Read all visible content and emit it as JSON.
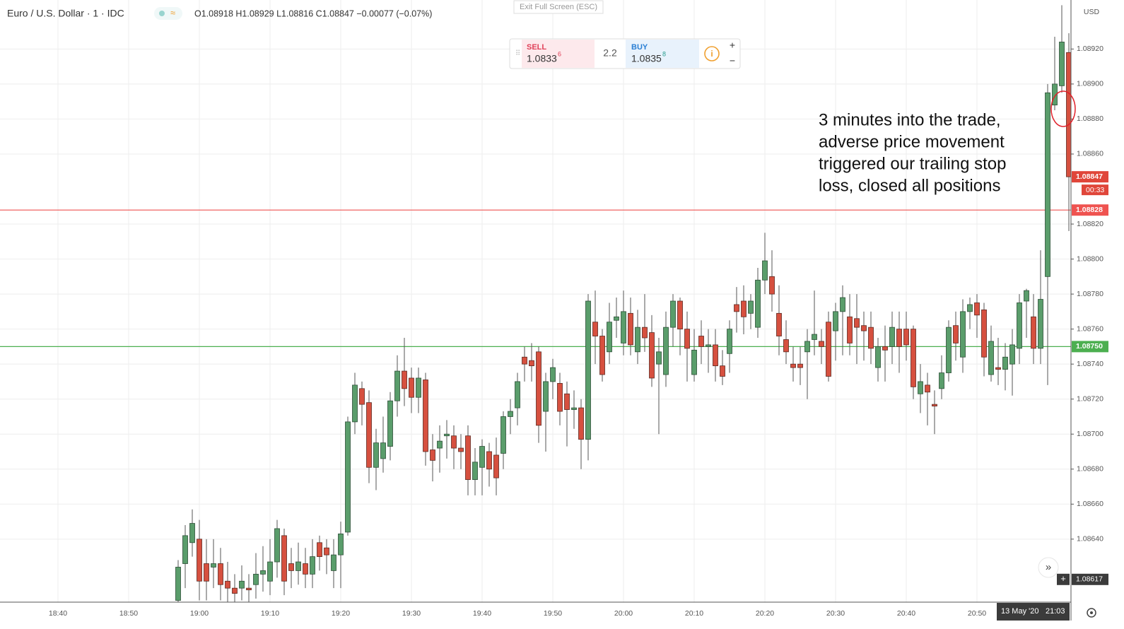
{
  "chart_data": {
    "type": "candlestick",
    "title": "Euro / U.S. Dollar · 1 · IDC",
    "ohlc_summary": "O1.08918 H1.08929 L1.08816 C1.08847 −0.00077 (−0.07%)",
    "currency": "USD",
    "exit_button": "Exit Full Screen (ESC)",
    "trade_panel": {
      "sell_label": "SELL",
      "sell_price": "1.0833",
      "sell_pip": "6",
      "spread": "2.2",
      "buy_label": "BUY",
      "buy_price": "1.0835",
      "buy_pip": "8",
      "plus": "+",
      "minus": "−"
    },
    "annotation": [
      "3 minutes into the trade,",
      "adverse price movement",
      "triggered our trailing stop",
      "loss, closed all positions"
    ],
    "categories": [
      "18:40",
      null,
      null,
      null,
      null,
      null,
      null,
      null,
      null,
      null,
      "18:50",
      null,
      null,
      null,
      null,
      null,
      null,
      null,
      null,
      null,
      "19:00",
      null,
      null,
      null,
      null,
      null,
      null,
      null,
      null,
      null,
      "19:10",
      null,
      null,
      null,
      null,
      null,
      null,
      null,
      null,
      null,
      "19:20",
      null,
      null,
      null,
      null,
      null,
      null,
      null,
      null,
      null,
      "19:30",
      null,
      null,
      null,
      null,
      null,
      null,
      null,
      null,
      null,
      "19:40",
      null,
      null,
      null,
      null,
      null,
      null,
      null,
      null,
      null,
      "19:50",
      null,
      null,
      null,
      null,
      null,
      null,
      null,
      null,
      null,
      "20:00",
      null,
      null,
      null,
      null,
      null,
      null,
      null,
      null,
      null,
      "20:10",
      null,
      null,
      null,
      null,
      null,
      null,
      null,
      null,
      null,
      "20:20",
      null,
      null,
      null,
      null,
      null,
      null,
      null,
      null,
      null,
      "20:30",
      null,
      null,
      null,
      null,
      null,
      null,
      null,
      null,
      null,
      "20:40",
      null,
      null,
      null,
      null,
      null,
      null,
      null,
      null,
      null,
      "20:50",
      null,
      null,
      null,
      null,
      null,
      null,
      null,
      null,
      null,
      null,
      null,
      null,
      null
    ],
    "open": [
      null,
      null,
      null,
      null,
      null,
      null,
      null,
      null,
      null,
      null,
      null,
      null,
      null,
      null,
      null,
      null,
      null,
      1.08605,
      1.08626,
      1.08638,
      1.0864,
      1.08626,
      1.08624,
      1.08626,
      1.08616,
      1.08612,
      1.08612,
      1.08612,
      1.08614,
      1.0862,
      1.08616,
      1.08627,
      1.08642,
      1.08626,
      1.08622,
      1.08626,
      1.0862,
      1.08638,
      1.08635,
      1.08622,
      1.08631,
      1.08644,
      1.08707,
      1.08726,
      1.08718,
      1.08681,
      1.08686,
      1.08693,
      1.08719,
      1.08736,
      1.08732,
      1.08721,
      1.08731,
      1.08691,
      1.08692,
      1.08699,
      1.08699,
      1.08692,
      1.08699,
      1.08674,
      1.08681,
      1.0869,
      1.08688,
      1.08689,
      1.0871,
      1.08715,
      1.08744,
      1.08742,
      1.08747,
      1.08713,
      1.0873,
      1.08729,
      1.08723,
      1.08714,
      1.08715,
      1.08697,
      1.08764,
      1.08756,
      1.08747,
      1.08765,
      1.08752,
      1.08769,
      1.08747,
      1.08761,
      1.08758,
      1.0874,
      1.08734,
      1.08761,
      1.08776,
      1.0876,
      1.08734,
      1.08756,
      1.0875,
      1.08751,
      1.08739,
      1.08746,
      1.08774,
      1.08776,
      1.08769,
      1.08761,
      1.08788,
      1.0879,
      1.08769,
      1.08754,
      1.0874,
      1.0874,
      1.08747,
      1.08754,
      1.08753,
      1.08764,
      1.08759,
      1.0877,
      1.08767,
      1.08766,
      1.08762,
      1.08761,
      1.08738,
      1.0875,
      1.0875,
      1.0876,
      1.0876,
      1.0876,
      1.08723,
      1.08728,
      1.08717,
      1.08726,
      1.08735,
      1.08762,
      1.08744,
      1.0877,
      1.08775,
      1.08771,
      1.08734,
      1.08738,
      1.08737,
      1.0874,
      1.08749,
      1.08776,
      1.08767,
      1.08749,
      1.0879,
      1.08888,
      1.08899,
      1.08918
    ],
    "high": [
      null,
      null,
      null,
      null,
      null,
      null,
      null,
      null,
      null,
      null,
      null,
      null,
      null,
      null,
      null,
      null,
      null,
      1.08628,
      1.08648,
      1.08657,
      1.08651,
      1.0864,
      1.0864,
      1.08635,
      1.08627,
      1.0862,
      1.08625,
      1.0862,
      1.08632,
      1.08636,
      1.0864,
      1.08651,
      1.08646,
      1.08635,
      1.08638,
      1.08635,
      1.0864,
      1.08642,
      1.0864,
      1.0864,
      1.0865,
      1.0871,
      1.08735,
      1.0873,
      1.08725,
      1.08703,
      1.0871,
      1.08724,
      1.08745,
      1.08755,
      1.08738,
      1.08738,
      1.08735,
      1.087,
      1.08705,
      1.08708,
      1.08705,
      1.087,
      1.08705,
      1.08692,
      1.08697,
      1.08695,
      1.08698,
      1.08713,
      1.0872,
      1.08735,
      1.0875,
      1.08752,
      1.0875,
      1.08735,
      1.08743,
      1.08735,
      1.0873,
      1.08725,
      1.0872,
      1.0878,
      1.08782,
      1.0876,
      1.08775,
      1.08778,
      1.08782,
      1.08778,
      1.08771,
      1.0878,
      1.08768,
      1.08755,
      1.0877,
      1.0878,
      1.08778,
      1.0877,
      1.0876,
      1.08765,
      1.0876,
      1.0876,
      1.08748,
      1.08765,
      1.08784,
      1.08785,
      1.0878,
      1.08795,
      1.08815,
      1.08805,
      1.08785,
      1.08765,
      1.0875,
      1.0875,
      1.0876,
      1.08782,
      1.0876,
      1.0877,
      1.08775,
      1.08785,
      1.0878,
      1.0878,
      1.0877,
      1.0877,
      1.08755,
      1.08762,
      1.0877,
      1.0877,
      1.0877,
      1.08762,
      1.0874,
      1.08735,
      1.08725,
      1.08745,
      1.08765,
      1.0877,
      1.08777,
      1.08778,
      1.0878,
      1.08775,
      1.08762,
      1.08755,
      1.08752,
      1.0876,
      1.0878,
      1.08783,
      1.0878,
      1.08805,
      1.089,
      1.08927,
      1.08945,
      1.08929
    ],
    "low": [
      null,
      null,
      null,
      null,
      null,
      null,
      null,
      null,
      null,
      null,
      null,
      null,
      null,
      null,
      null,
      null,
      null,
      1.086,
      1.08612,
      1.0863,
      1.08605,
      1.08605,
      1.08612,
      1.08605,
      1.08604,
      1.086,
      1.08605,
      1.08604,
      1.08606,
      1.0861,
      1.08608,
      1.08618,
      1.08608,
      1.08612,
      1.08614,
      1.08612,
      1.08612,
      1.08622,
      1.0862,
      1.08612,
      1.08612,
      1.08642,
      1.087,
      1.08705,
      1.08672,
      1.08668,
      1.08678,
      1.08685,
      1.0871,
      1.08716,
      1.08712,
      1.08712,
      1.08682,
      1.08673,
      1.08678,
      1.08686,
      1.0868,
      1.0868,
      1.08665,
      1.08665,
      1.08665,
      1.0867,
      1.08665,
      1.0868,
      1.087,
      1.08705,
      1.0873,
      1.0873,
      1.08695,
      1.0869,
      1.0872,
      1.08705,
      1.08693,
      1.08703,
      1.0868,
      1.08685,
      1.0874,
      1.0873,
      1.0874,
      1.08755,
      1.08745,
      1.08745,
      1.0874,
      1.08747,
      1.08727,
      1.087,
      1.08727,
      1.0875,
      1.08745,
      1.0873,
      1.0873,
      1.0874,
      1.08735,
      1.0873,
      1.08728,
      1.08735,
      1.08758,
      1.08757,
      1.0876,
      1.08755,
      1.0878,
      1.0877,
      1.08745,
      1.0874,
      1.0873,
      1.08728,
      1.0872,
      1.08745,
      1.0874,
      1.0873,
      1.08742,
      1.08745,
      1.08745,
      1.0874,
      1.08742,
      1.0874,
      1.0873,
      1.0873,
      1.0874,
      1.08735,
      1.08742,
      1.0872,
      1.08712,
      1.08705,
      1.087,
      1.0872,
      1.0873,
      1.08742,
      1.08735,
      1.0876,
      1.08755,
      1.08733,
      1.0873,
      1.08728,
      1.08725,
      1.08722,
      1.0874,
      1.08755,
      1.0874,
      1.0874,
      1.08728,
      1.08885,
      1.08895,
      1.08816
    ],
    "close": [
      null,
      null,
      null,
      null,
      null,
      null,
      null,
      null,
      null,
      null,
      null,
      null,
      null,
      null,
      null,
      null,
      null,
      1.08624,
      1.08642,
      1.08649,
      1.08616,
      1.08616,
      1.08626,
      1.08614,
      1.08612,
      1.08609,
      1.08616,
      1.08611,
      1.0862,
      1.08622,
      1.08627,
      1.08646,
      1.08616,
      1.08622,
      1.08627,
      1.0862,
      1.0863,
      1.0863,
      1.08631,
      1.08631,
      1.08643,
      1.08707,
      1.08728,
      1.08717,
      1.08681,
      1.08695,
      1.08695,
      1.08719,
      1.08736,
      1.08726,
      1.08721,
      1.08732,
      1.0869,
      1.08685,
      1.08696,
      1.087,
      1.08692,
      1.0869,
      1.08674,
      1.08684,
      1.08693,
      1.0868,
      1.08675,
      1.0871,
      1.08713,
      1.0873,
      1.0874,
      1.08739,
      1.08705,
      1.0873,
      1.08738,
      1.08713,
      1.08714,
      1.08715,
      1.08697,
      1.08776,
      1.08756,
      1.08734,
      1.08764,
      1.08767,
      1.0877,
      1.08751,
      1.08761,
      1.08755,
      1.08732,
      1.08747,
      1.08761,
      1.08776,
      1.0876,
      1.08749,
      1.08748,
      1.0875,
      1.08751,
      1.08739,
      1.08733,
      1.0876,
      1.0877,
      1.08767,
      1.08776,
      1.08788,
      1.08799,
      1.0878,
      1.08756,
      1.08747,
      1.08738,
      1.08738,
      1.08753,
      1.08757,
      1.0875,
      1.08733,
      1.0877,
      1.08778,
      1.08752,
      1.08761,
      1.08759,
      1.08749,
      1.0875,
      1.08748,
      1.08761,
      1.0875,
      1.08751,
      1.08727,
      1.0873,
      1.08724,
      1.08716,
      1.08735,
      1.08761,
      1.08752,
      1.0877,
      1.08774,
      1.08768,
      1.08744,
      1.08753,
      1.08737,
      1.08744,
      1.08751,
      1.08775,
      1.08782,
      1.08749,
      1.08777,
      1.08895,
      1.089,
      1.08924,
      1.08847
    ],
    "up_color": "#5a9d6b",
    "down_color": "#d6503f",
    "ylim": [
      1.08604,
      1.08948
    ],
    "yticks": [
      {
        "value": 1.0864,
        "label": "1.08640"
      },
      {
        "value": 1.0866,
        "label": "1.08660"
      },
      {
        "value": 1.0868,
        "label": "1.08680"
      },
      {
        "value": 1.087,
        "label": "1.08700"
      },
      {
        "value": 1.0872,
        "label": "1.08720"
      },
      {
        "value": 1.0874,
        "label": "1.08740"
      },
      {
        "value": 1.0876,
        "label": "1.08760"
      },
      {
        "value": 1.0878,
        "label": "1.08780"
      },
      {
        "value": 1.088,
        "label": "1.08800"
      },
      {
        "value": 1.0882,
        "label": "1.08820"
      },
      {
        "value": 1.0886,
        "label": "1.08860"
      },
      {
        "value": 1.0888,
        "label": "1.08880"
      },
      {
        "value": 1.089,
        "label": "1.08900"
      },
      {
        "value": 1.0892,
        "label": "1.08920"
      }
    ],
    "grid": true,
    "hlines": [
      {
        "value": 1.08828,
        "label": "1.08828",
        "color": "#ef5350"
      },
      {
        "value": 1.0875,
        "label": "1.08750",
        "color": "#4caf50"
      }
    ],
    "last_price": {
      "value": 1.08847,
      "label": "1.08847",
      "countdown": "00:33",
      "color": "#e0463a"
    },
    "cursor_price": {
      "value": 1.08617,
      "label": "1.08617"
    },
    "cursor_date": "13 May '20",
    "cursor_time": "21:03"
  }
}
